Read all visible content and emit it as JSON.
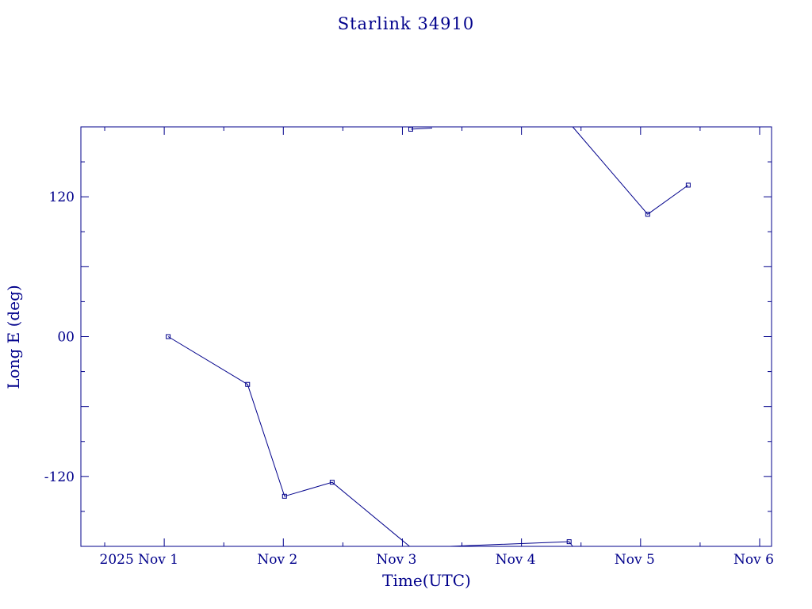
{
  "chart_data": {
    "type": "line",
    "title": "Starlink 34910",
    "xlabel": "Time(UTC)",
    "ylabel": "Long E (deg)",
    "color": "#00008b",
    "x_range_days": [
      0.0,
      5.8
    ],
    "ylim": [
      -180,
      180
    ],
    "x_tick_labels": [
      {
        "day": 0.7,
        "label": "2025 Nov  1"
      },
      {
        "day": 1.7,
        "label": "Nov  2"
      },
      {
        "day": 2.7,
        "label": "Nov  3"
      },
      {
        "day": 3.7,
        "label": "Nov  4"
      },
      {
        "day": 4.7,
        "label": "Nov  5"
      },
      {
        "day": 5.7,
        "label": "Nov  6"
      }
    ],
    "y_tick_labels": [
      {
        "value": 120,
        "label": "120"
      },
      {
        "value": 0,
        "label": "00"
      },
      {
        "value": -120,
        "label": "-120"
      }
    ],
    "segments": [
      {
        "name": "",
        "points": [
          {
            "day": 0.733,
            "lon": 0,
            "marker": true
          },
          {
            "day": 1.4,
            "lon": -41,
            "marker": true
          },
          {
            "day": 1.71,
            "lon": -137,
            "marker": true
          },
          {
            "day": 2.11,
            "lon": -125,
            "marker": true
          },
          {
            "day": 2.76,
            "lon": -180,
            "marker": false
          }
        ]
      },
      {
        "name": "",
        "points": [
          {
            "day": 2.77,
            "lon": 178,
            "marker": true
          },
          {
            "day": 2.95,
            "lon": 179,
            "marker": false
          }
        ]
      },
      {
        "name": "",
        "points": [
          {
            "day": 3.1,
            "lon": -180,
            "marker": false
          },
          {
            "day": 4.1,
            "lon": -176,
            "marker": true
          },
          {
            "day": 4.13,
            "lon": -180,
            "marker": false
          }
        ]
      },
      {
        "name": "",
        "points": [
          {
            "day": 4.13,
            "lon": 180,
            "marker": false
          },
          {
            "day": 4.76,
            "lon": 105,
            "marker": true
          },
          {
            "day": 5.1,
            "lon": 130,
            "marker": true
          }
        ]
      }
    ]
  }
}
